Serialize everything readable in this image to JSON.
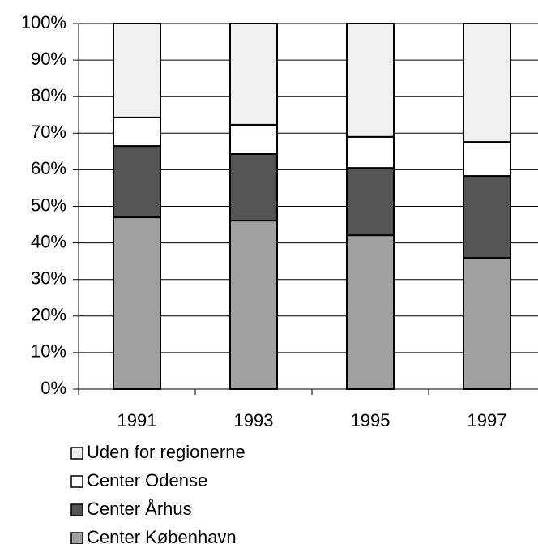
{
  "chart_data": {
    "type": "stacked_bar",
    "categories": [
      "1991",
      "1993",
      "1995",
      "1997"
    ],
    "series": [
      {
        "name": "Center København",
        "color": "#a0a0a0",
        "values": [
          47.0,
          46.1,
          42.1,
          35.9
        ]
      },
      {
        "name": "Center Århus",
        "color": "#555555",
        "values": [
          19.5,
          18.2,
          18.4,
          22.4
        ]
      },
      {
        "name": "Center Odense",
        "color": "#ffffff",
        "values": [
          7.8,
          8.0,
          8.5,
          9.3
        ]
      },
      {
        "name": "Uden for regionerne",
        "color": "#f0f0f0",
        "values": [
          25.7,
          27.7,
          31.0,
          32.4
        ]
      }
    ],
    "ylim": [
      0,
      100
    ],
    "yticks": [
      {
        "value": 0,
        "label": "0%"
      },
      {
        "value": 10,
        "label": "10%"
      },
      {
        "value": 20,
        "label": "20%"
      },
      {
        "value": 30,
        "label": "30%"
      },
      {
        "value": 40,
        "label": "40%"
      },
      {
        "value": 50,
        "label": "50%"
      },
      {
        "value": 60,
        "label": "60%"
      },
      {
        "value": 70,
        "label": "70%"
      },
      {
        "value": 80,
        "label": "80%"
      },
      {
        "value": 90,
        "label": "90%"
      },
      {
        "value": 100,
        "label": "100%"
      }
    ],
    "grid": true,
    "legend": "bottom"
  }
}
